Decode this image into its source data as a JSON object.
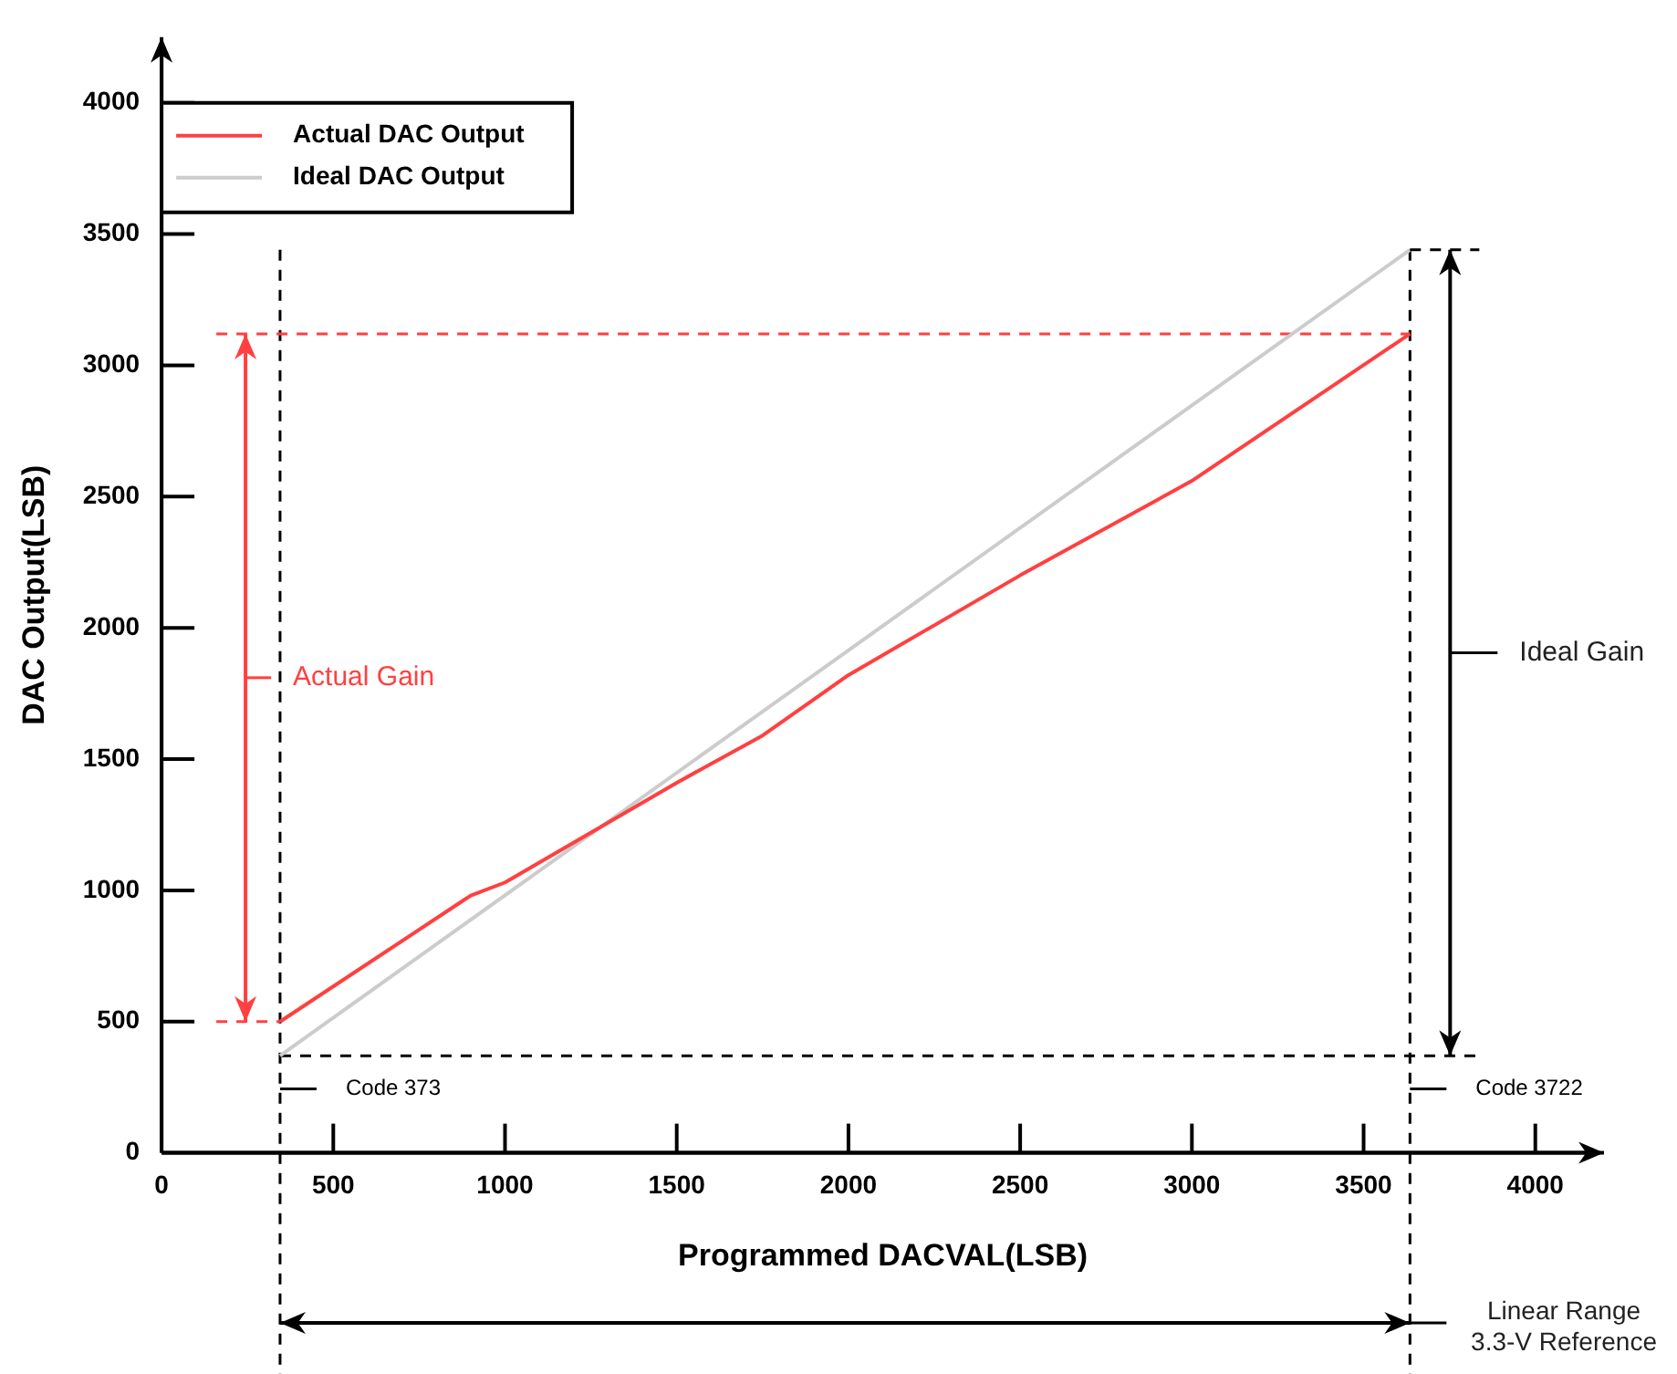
{
  "chart_data": {
    "type": "line",
    "xlabel": "Programmed DACVAL(LSB)",
    "ylabel": "DAC Output(LSB)",
    "xlim": [
      0,
      4200
    ],
    "ylim": [
      0,
      4250
    ],
    "xticks": [
      0,
      500,
      1000,
      1500,
      2000,
      2500,
      3000,
      3500,
      4000
    ],
    "yticks": [
      0,
      500,
      1000,
      1500,
      2000,
      2500,
      3000,
      3500,
      4000
    ],
    "series": [
      {
        "name": "Actual DAC Output",
        "color": "#ff4040",
        "x": [
          345,
          900,
          1000,
          1500,
          1750,
          2000,
          2500,
          3000,
          3635
        ],
        "values": [
          500,
          980,
          1030,
          1410,
          1590,
          1820,
          2200,
          2560,
          3120
        ]
      },
      {
        "name": "Ideal DAC Output",
        "color": "#cccccc",
        "x": [
          345,
          3635
        ],
        "values": [
          370,
          3440
        ]
      }
    ],
    "ref_lines": [
      {
        "axis": "y",
        "value": 3120,
        "color": "#ff4040",
        "line_style": "dashed"
      },
      {
        "axis": "y",
        "value": 370,
        "color": "#000000",
        "line_style": "dashed"
      },
      {
        "axis": "x",
        "value": 345,
        "label": "Code 373",
        "color": "#000000",
        "line_style": "dashed"
      },
      {
        "axis": "x",
        "value": 3635,
        "label": "Code 3722",
        "color": "#000000",
        "line_style": "dashed"
      }
    ],
    "annotations": [
      "Actual Gain",
      "Ideal Gain",
      "Linear Range\n3.3-V Reference"
    ],
    "legend": "top left",
    "marker": "none",
    "line_style": "solid"
  }
}
